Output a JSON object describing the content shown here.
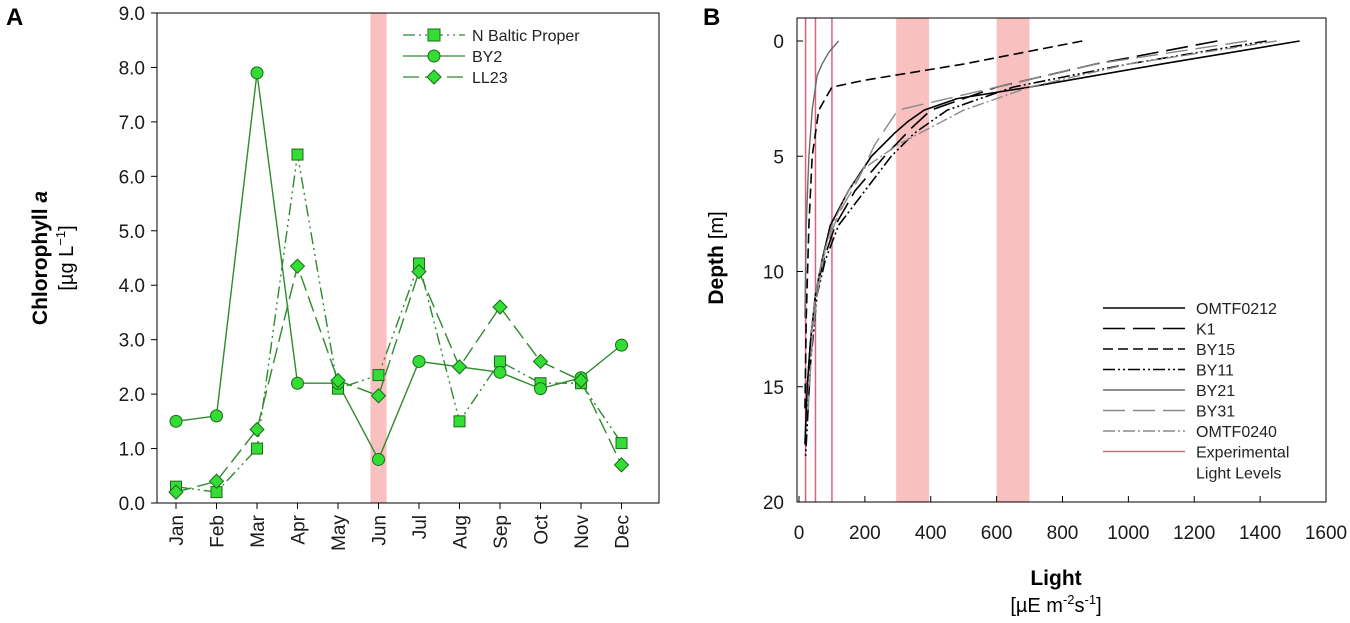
{
  "colors": {
    "green_line": "#2e8b2e",
    "green_marker": "#33dd33",
    "band": "#f9c0c0",
    "exp_line": "#e06080",
    "black": "#000000"
  },
  "chart_data": [
    {
      "id": "A",
      "panel_label": "A",
      "type": "line",
      "ylabel": "Chlorophyll a",
      "ylabel_main": "Chlorophyll ",
      "ylabel_italic": "a",
      "yunit": "[µg L",
      "yunit_sup": "−1",
      "yunit_end": "]",
      "xlabel": "",
      "ylim": [
        0,
        9
      ],
      "yticks": [
        "0.0",
        "1.0",
        "2.0",
        "3.0",
        "4.0",
        "5.0",
        "6.0",
        "7.0",
        "8.0",
        "9.0"
      ],
      "categories": [
        "Jan",
        "Feb",
        "Mar",
        "Apr",
        "May",
        "Jun",
        "Jul",
        "Aug",
        "Sep",
        "Oct",
        "Nov",
        "Dec"
      ],
      "highlight_band": {
        "category": "Jun",
        "width": 0.4
      },
      "legend_position": "top-right",
      "series": [
        {
          "name": "N Baltic Proper",
          "marker": "square",
          "dash": "12 4 2 4 2 4",
          "values": [
            0.3,
            0.2,
            1.0,
            6.4,
            2.1,
            2.35,
            4.4,
            1.5,
            2.6,
            2.2,
            2.2,
            1.1
          ]
        },
        {
          "name": "BY2",
          "marker": "circle",
          "dash": "",
          "values": [
            1.5,
            1.6,
            7.9,
            2.2,
            2.2,
            0.8,
            2.6,
            null,
            2.4,
            2.1,
            2.3,
            2.9
          ]
        },
        {
          "name": "LL23",
          "marker": "diamond",
          "dash": "16 6",
          "values": [
            0.2,
            0.4,
            1.35,
            4.35,
            2.25,
            1.97,
            4.25,
            2.5,
            3.6,
            2.6,
            2.25,
            0.7
          ]
        }
      ]
    },
    {
      "id": "B",
      "panel_label": "B",
      "type": "line",
      "xlabel": "Light",
      "xunit": "[µE m",
      "xunit_sup1": "-2",
      "xunit_mid": "s",
      "xunit_sup2": "-1",
      "xunit_end": "]",
      "ylabel": "Depth",
      "yunit": "[m]",
      "xlim": [
        0,
        1600
      ],
      "ylim": [
        20,
        -1
      ],
      "xticks": [
        "0",
        "200",
        "400",
        "600",
        "800",
        "1000",
        "1200",
        "1400",
        "1600"
      ],
      "yticks": [
        "0",
        "5",
        "10",
        "15",
        "20"
      ],
      "light_bands": [
        [
          295,
          395
        ],
        [
          600,
          700
        ]
      ],
      "experimental_levels": [
        20,
        50,
        100
      ],
      "legend_position": "bottom-right",
      "series": [
        {
          "name": "OMTF0212",
          "dash": "",
          "width": 1.6,
          "color": "#000000",
          "light": [
            1520,
            1100,
            700,
            480,
            380,
            330,
            290,
            220,
            150,
            95,
            70,
            50,
            35,
            25,
            18
          ],
          "depth": [
            0,
            1,
            2,
            2.5,
            3,
            3.5,
            4,
            5,
            6.5,
            8,
            9.5,
            11,
            13,
            15,
            17.5
          ]
        },
        {
          "name": "K1",
          "dash": "22 8",
          "width": 1.6,
          "color": "#000000",
          "light": [
            1270,
            900,
            600,
            400,
            340,
            260,
            170,
            110,
            75,
            50,
            35,
            25
          ],
          "depth": [
            0,
            1,
            2,
            3,
            3.8,
            5,
            6.5,
            8,
            9.5,
            11,
            13,
            15
          ]
        },
        {
          "name": "BY15",
          "dash": "10 5",
          "width": 1.6,
          "color": "#000000",
          "light": [
            860,
            500,
            200,
            100,
            60,
            40,
            30,
            22,
            18
          ],
          "depth": [
            0,
            1,
            1.7,
            2,
            3,
            5,
            8,
            12,
            16
          ]
        },
        {
          "name": "BY11",
          "dash": "12 3 2 3 2 3",
          "width": 1.6,
          "color": "#000000",
          "light": [
            1420,
            1000,
            650,
            450,
            350,
            280,
            200,
            120,
            80,
            55,
            35,
            20
          ],
          "depth": [
            0,
            1,
            2,
            3,
            4,
            5,
            6.5,
            8,
            9.5,
            11,
            14,
            18
          ]
        },
        {
          "name": "BY21",
          "dash": "",
          "width": 1.4,
          "color": "#6a6a6a",
          "light": [
            120,
            90,
            70,
            55,
            40,
            30,
            22,
            18
          ],
          "depth": [
            0,
            0.5,
            1,
            1.5,
            3,
            5,
            8,
            12
          ]
        },
        {
          "name": "BY31",
          "dash": "22 8",
          "width": 1.4,
          "color": "#8a8a8a",
          "light": [
            1360,
            900,
            600,
            420,
            300,
            230,
            180,
            120,
            80,
            55,
            40,
            28
          ],
          "depth": [
            0,
            1,
            2,
            2.6,
            3,
            4.5,
            6,
            7.5,
            9,
            11,
            13,
            16
          ]
        },
        {
          "name": "OMTF0240",
          "dash": "12 3 2 3",
          "width": 1.4,
          "color": "#8a8a8a",
          "light": [
            1450,
            1000,
            700,
            500,
            300,
            200,
            150,
            100,
            70,
            50,
            35
          ],
          "depth": [
            0,
            1,
            2,
            3,
            4.5,
            5.5,
            6.5,
            8,
            9.5,
            11,
            13
          ]
        }
      ],
      "legend_extra": [
        "Experimental",
        "Light Levels"
      ]
    }
  ]
}
